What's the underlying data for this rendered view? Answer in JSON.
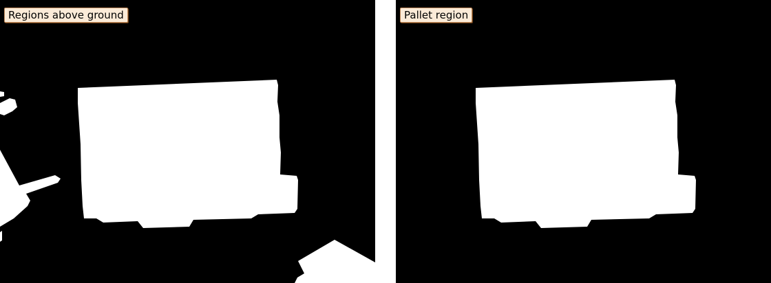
{
  "windows": {
    "left": {
      "caption": "Regions above ground",
      "region_color": "#ffffff",
      "background_color": "#000000"
    },
    "right": {
      "caption": "Pallet region",
      "region_color": "#ffffff",
      "background_color": "#000000"
    }
  },
  "colors": {
    "caption_background": "#fbebd8",
    "caption_border": "#c08a5c",
    "separator": "#ffffff"
  }
}
